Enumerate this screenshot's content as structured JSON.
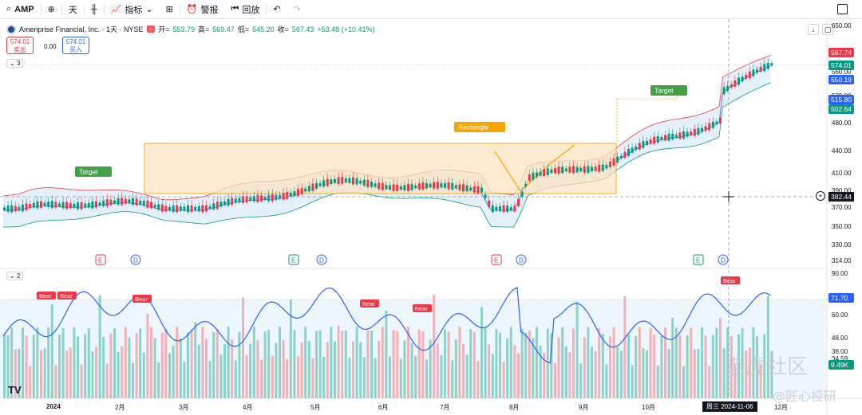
{
  "toolbar": {
    "symbol": "AMP",
    "interval": "天",
    "indicators_label": "指标",
    "alert_label": "警报",
    "replay_label": "回放"
  },
  "legend": {
    "name": "Ameriprise Financial, Inc. · 1天 · NYSE",
    "open_label": "开=",
    "open": "553.79",
    "high_label": "高=",
    "high": "569.47",
    "low_label": "低=",
    "low": "545.20",
    "close_label": "收=",
    "close": "567.43",
    "change": "+53.48 (+10.41%)",
    "sell_price": "574.01",
    "sell_label": "卖出",
    "spread": "0.00",
    "buy_price": "574.01",
    "buy_label": "买入",
    "price_pane_count": "3",
    "rsi_pane_count": "2"
  },
  "price_axis": {
    "ticks": [
      "650.00",
      "560.00",
      "520.00",
      "480.00",
      "440.00",
      "410.00",
      "390.00",
      "370.00",
      "350.00",
      "330.00",
      "314.00"
    ],
    "tags": [
      {
        "value": "597.74",
        "color": "#f23645"
      },
      {
        "value": "574.01",
        "color": "#089981"
      },
      {
        "value": "550.19",
        "color": "#2962ff"
      },
      {
        "value": "515.80",
        "color": "#2962ff"
      },
      {
        "value": "502.64",
        "color": "#089981"
      }
    ],
    "cursor_value": "382.44"
  },
  "rsi_axis": {
    "ticks": [
      "90.00",
      "60.00",
      "48.00",
      "36.00",
      "34.59"
    ],
    "tag_value": "71.70",
    "volume_tag": "9.49K"
  },
  "time_axis": {
    "labels": [
      "2024",
      "2月",
      "3月",
      "4月",
      "5月",
      "6月",
      "7月",
      "8月",
      "9月",
      "10月",
      "12月"
    ],
    "cursor_date": "周三 2024-11-06"
  },
  "annotations": {
    "target1": "Target",
    "target2": "Target",
    "rectangle": "Rectangle",
    "bear_labels": [
      "Bear",
      "Bear",
      "Bear",
      "Bear",
      "Bear",
      "Bear"
    ],
    "event_markers": [
      "E",
      "D",
      "E",
      "D",
      "E",
      "D",
      "E",
      "D"
    ]
  },
  "watermark": {
    "brand": "老虎社区",
    "author": "@匠心投研"
  },
  "colors": {
    "up": "#089981",
    "down": "#f23645",
    "accent": "#2962ff",
    "rectangle": "#f7a600"
  }
}
